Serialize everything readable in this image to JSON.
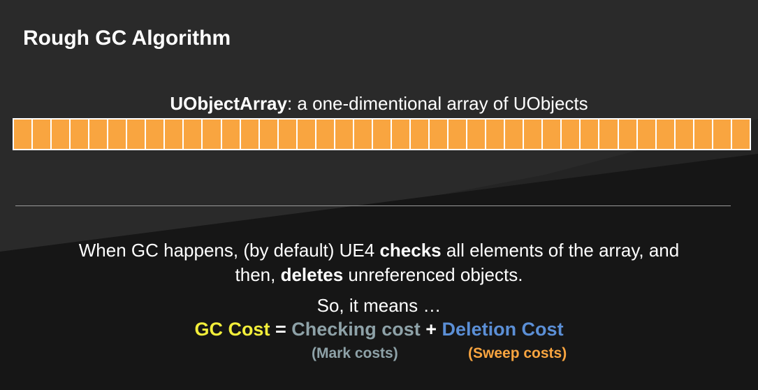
{
  "title": "Rough GC Algorithm",
  "array": {
    "name": "UObjectArray",
    "caption_rest": ": a one-dimentional array of UObjects",
    "cell_count": 39,
    "cell_color": "#f9a540"
  },
  "description": {
    "line1_a": "When GC happens, (by default) UE4 ",
    "line1_bold": "checks",
    "line1_b": " all elements of the array, and",
    "line2_a": "then, ",
    "line2_bold": "deletes",
    "line2_b": " unreferenced objects."
  },
  "means": "So, it means …",
  "formula": {
    "gc_cost": "GC Cost",
    "equals": " = ",
    "checking_cost": "Checking cost",
    "plus": " + ",
    "deletion_cost": "Deletion Cost",
    "mark_costs": "(Mark costs)",
    "sweep_costs": "(Sweep costs)"
  },
  "colors": {
    "gc_cost": "#f2ee3a",
    "checking": "#8ea2a8",
    "deletion": "#5b8fd6",
    "sweep": "#f9a540",
    "background": "#242424"
  }
}
